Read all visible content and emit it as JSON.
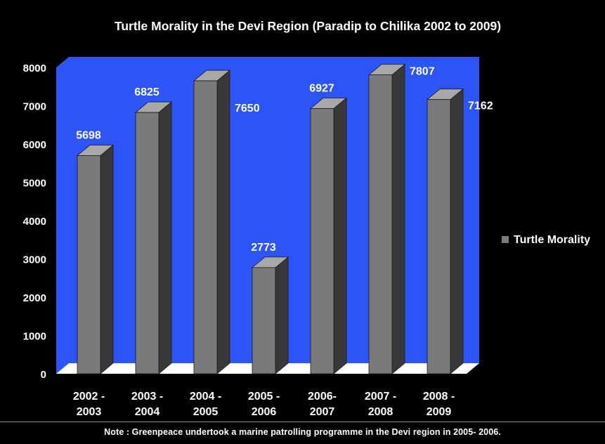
{
  "chart_data": {
    "type": "bar",
    "title": "Turtle Morality in the Devi Region (Paradip to Chilika 2002 to 2009)",
    "categories": [
      [
        "2002 -",
        "2003"
      ],
      [
        "2003 -",
        "2004"
      ],
      [
        "2004 -",
        "2005"
      ],
      [
        "2005 -",
        "2006"
      ],
      [
        "2006-",
        "2007"
      ],
      [
        "2007 -",
        "2008"
      ],
      [
        "2008 -",
        "2009"
      ]
    ],
    "series": [
      {
        "name": "Turtle Morality",
        "values": [
          5698,
          6825,
          7650,
          2773,
          6927,
          7807,
          7162
        ]
      }
    ],
    "data_labels": [
      "5698",
      "6825",
      "7650",
      "2773",
      "6927",
      "7807",
      "7162"
    ],
    "ylim": [
      0,
      8000
    ],
    "yticks": [
      0,
      1000,
      2000,
      3000,
      4000,
      5000,
      6000,
      7000,
      8000
    ],
    "legend_position": "right",
    "grid": false,
    "colors": {
      "background": "#000000",
      "plot_wall": "#2c54f6",
      "floor": "#ffffff",
      "bar_front": "#7a7a7a",
      "bar_side": "#383838",
      "bar_top": "#a8a8a8",
      "text": "#ffffff"
    }
  },
  "note": "Note : Greenpeace undertook a marine patrolling programme in the Devi region in 2005- 2006."
}
